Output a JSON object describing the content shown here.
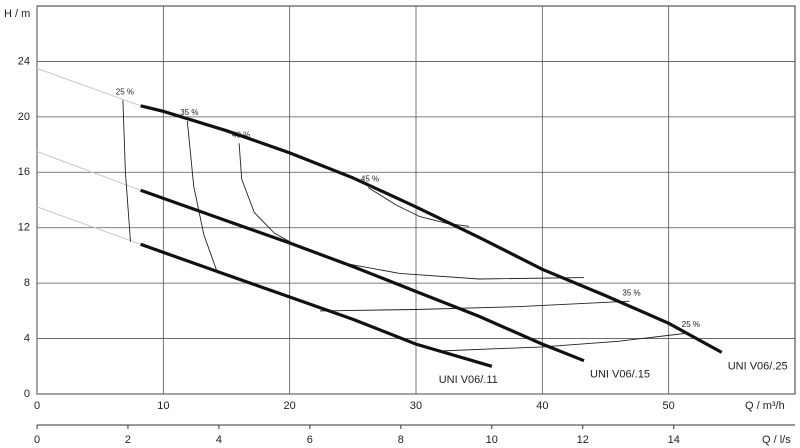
{
  "chart_data": {
    "type": "line",
    "ylabel": "H / m",
    "xlabel": "Q / m³/h",
    "x2label": "Q / l/s",
    "xlim": [
      0,
      60
    ],
    "xticks": [
      0,
      10,
      20,
      30,
      40,
      50
    ],
    "ylim": [
      0,
      28
    ],
    "yticks": [
      0,
      4,
      8,
      12,
      16,
      20,
      24
    ],
    "x2lim": [
      0,
      16.667
    ],
    "x2ticks": [
      0,
      2,
      4,
      6,
      8,
      10,
      12,
      14
    ],
    "grid": true,
    "series": [
      {
        "name": "UNI V06/.25",
        "color": "#111111",
        "x": [
          8.2,
          10,
          15,
          20,
          25,
          30,
          35,
          40,
          45,
          50,
          54.2
        ],
        "values": [
          20.8,
          20.4,
          19.0,
          17.4,
          15.6,
          13.5,
          11.3,
          9.0,
          7.1,
          5.1,
          3.0
        ]
      },
      {
        "name": "UNI V06/.15",
        "color": "#111111",
        "x": [
          8.2,
          15,
          20,
          25,
          30,
          35,
          40,
          43.3
        ],
        "values": [
          14.7,
          12.5,
          10.9,
          9.2,
          7.4,
          5.6,
          3.6,
          2.4
        ]
      },
      {
        "name": "UNI V06/.11",
        "color": "#111111",
        "x": [
          8.2,
          15,
          20,
          25,
          30,
          36.0
        ],
        "values": [
          10.8,
          8.6,
          7.0,
          5.4,
          3.6,
          2.0
        ]
      }
    ],
    "extensions": [
      {
        "color": "#c8c8c8",
        "x": [
          0,
          8.2
        ],
        "values": [
          23.5,
          20.8
        ]
      },
      {
        "color": "#c8c8c8",
        "x": [
          0,
          8.2
        ],
        "values": [
          17.5,
          14.7
        ]
      },
      {
        "color": "#c8c8c8",
        "x": [
          0,
          8.2
        ],
        "values": [
          13.5,
          10.8
        ]
      }
    ],
    "efficiency": [
      {
        "label": "25 %",
        "x": [
          6.8,
          7.0,
          7.4
        ],
        "values": [
          21.2,
          16.0,
          11.0
        ]
      },
      {
        "label": "35 %",
        "x": [
          11.9,
          12.4,
          13.2,
          14.3
        ],
        "values": [
          19.7,
          15.0,
          11.5,
          8.7
        ]
      },
      {
        "label": "40 %",
        "x": [
          16.0,
          16.2,
          17.2,
          18.8,
          20.8,
          24.5,
          28.7,
          35.0,
          43.3
        ],
        "values": [
          18.1,
          15.5,
          13.1,
          11.6,
          10.6,
          9.4,
          8.7,
          8.3,
          8.4
        ]
      },
      {
        "label": "45 %",
        "x": [
          26.2,
          28.5,
          30.3,
          32.5,
          34.2
        ],
        "values": [
          14.9,
          13.6,
          12.8,
          12.3,
          12.1
        ]
      },
      {
        "label": "35 %",
        "x": [
          22.4,
          30.0,
          38.0,
          46.9
        ],
        "values": [
          6.0,
          6.1,
          6.3,
          6.7
        ]
      },
      {
        "label": "25 %",
        "x": [
          31.9,
          40.0,
          46.0,
          51.6
        ],
        "values": [
          3.1,
          3.4,
          3.8,
          4.4
        ]
      }
    ]
  }
}
